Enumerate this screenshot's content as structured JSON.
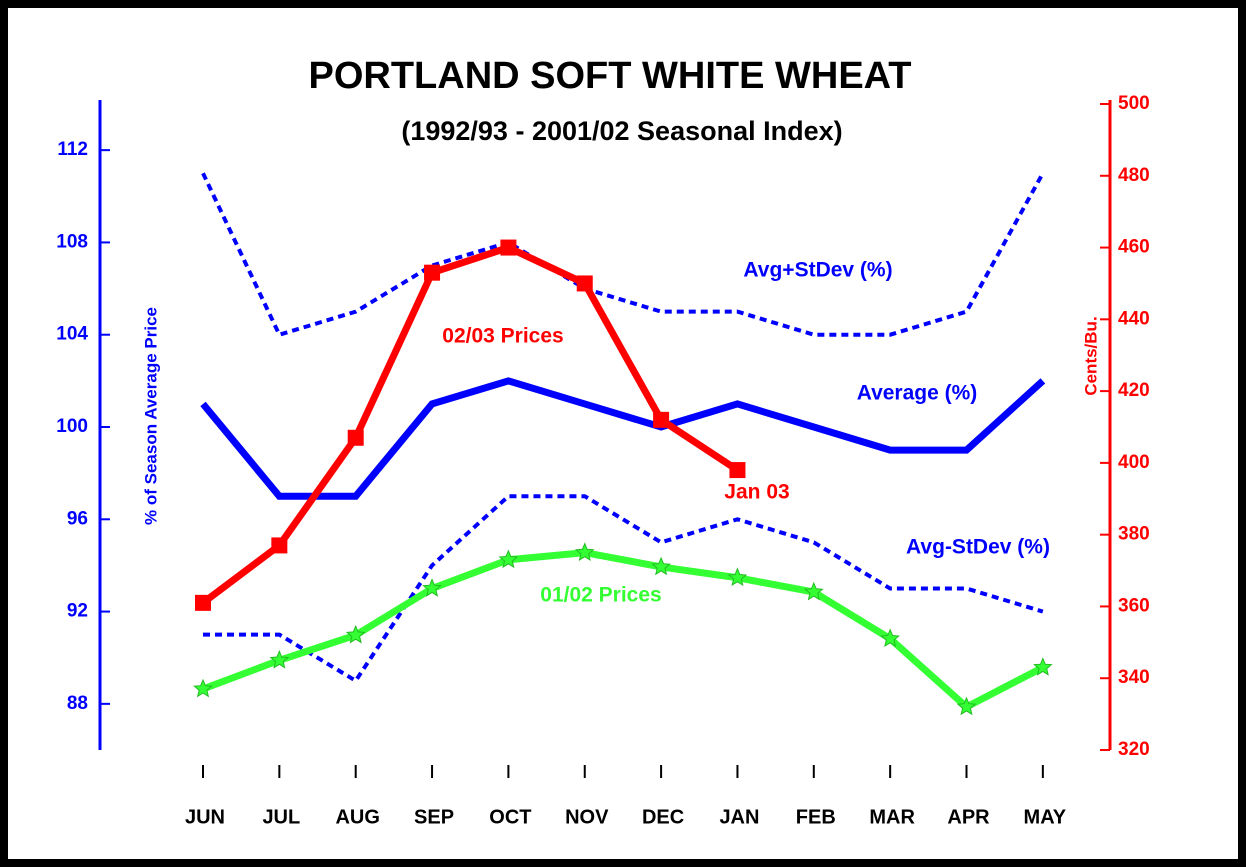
{
  "chart_data": {
    "type": "line",
    "title": "PORTLAND SOFT WHITE WHEAT",
    "subtitle": "(1992/93 - 2001/02 Seasonal Index)",
    "y_label": "% of Season Average Price",
    "y2_label": "Cents/Bu.",
    "categories": [
      "JUN",
      "JUL",
      "AUG",
      "SEP",
      "OCT",
      "NOV",
      "DEC",
      "JAN",
      "FEB",
      "MAR",
      "APR",
      "MAY"
    ],
    "ylim": [
      86,
      114
    ],
    "yticks": [
      88,
      92,
      96,
      100,
      104,
      108,
      112
    ],
    "y2lim": [
      320,
      500
    ],
    "y2ticks": [
      320,
      340,
      360,
      380,
      400,
      420,
      440,
      460,
      480,
      500
    ],
    "series": [
      {
        "name": "Avg+StDev (%)",
        "color": "#0000ff",
        "dashed": true,
        "values": [
          111,
          104,
          105,
          107,
          108,
          106,
          105,
          105,
          104,
          104,
          105,
          111
        ]
      },
      {
        "name": "Average (%)",
        "color": "#0000ff",
        "dashed": false,
        "values": [
          101,
          97,
          97,
          101,
          102,
          101,
          100,
          101,
          100,
          99,
          99,
          102
        ]
      },
      {
        "name": "Avg-StDev (%)",
        "color": "#0000ff",
        "dashed": true,
        "values": [
          91,
          91,
          89,
          94,
          97,
          97,
          95,
          96,
          95,
          93,
          93,
          92
        ]
      },
      {
        "name": "01/02 Prices",
        "color": "#33ff33",
        "axis": "y2",
        "marker": "star",
        "values": [
          337,
          345,
          352,
          365,
          373,
          375,
          371,
          368,
          364,
          351,
          332,
          343
        ]
      },
      {
        "name": "02/03 Prices",
        "color": "#ff0000",
        "axis": "y2",
        "marker": "square",
        "values": [
          361,
          377,
          407,
          453,
          460,
          450,
          412,
          398,
          null,
          null,
          null,
          null
        ]
      }
    ],
    "annotations": [
      "Jan 03"
    ]
  }
}
